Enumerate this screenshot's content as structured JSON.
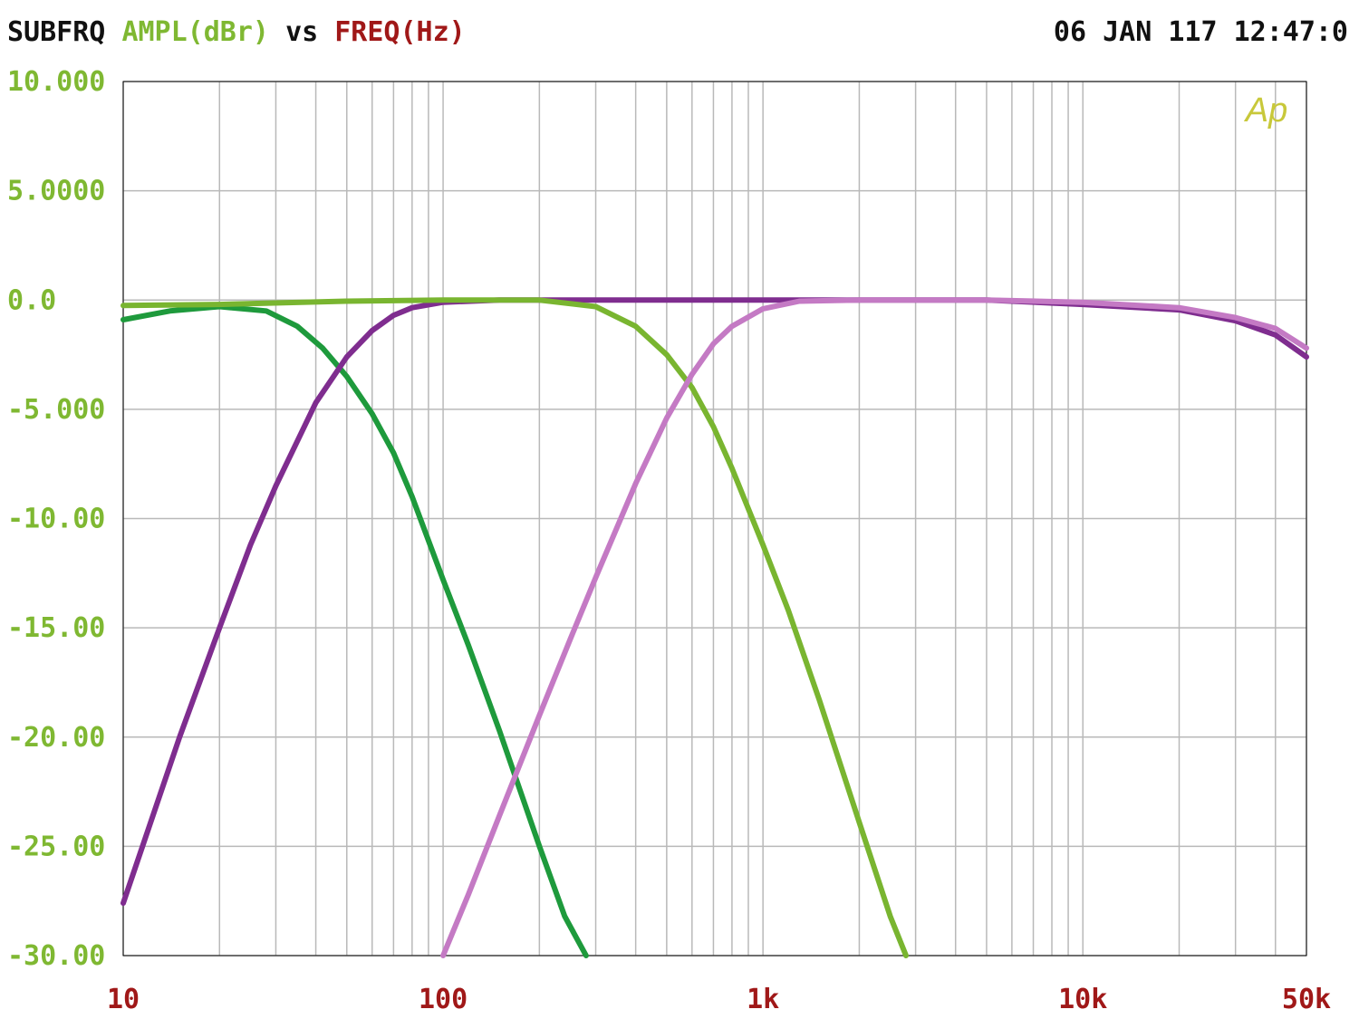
{
  "header": {
    "title_name": "SUBFRQ",
    "ylabel": "AMPL(dBr)",
    "vs": "vs",
    "xlabel": "FREQ(Hz)",
    "datetime": "06 JAN 117 12:47:0"
  },
  "logo": "Ap",
  "colors": {
    "frame": "#000000",
    "grid": "#b9b9b9",
    "ylabel_color": "#7fb832",
    "xlabel_color": "#a01818",
    "text_dark": "#111111"
  },
  "chart_data": {
    "type": "line",
    "title": "SUBFRQ AMPL(dBr) vs FREQ(Hz)",
    "xlabel": "FREQ(Hz)",
    "ylabel": "AMPL(dBr)",
    "xscale": "log",
    "xlim": [
      10,
      50000
    ],
    "ylim": [
      -30,
      10
    ],
    "grid": true,
    "x_tick_labels": [
      {
        "value": 10,
        "label": "10"
      },
      {
        "value": 100,
        "label": "100"
      },
      {
        "value": 1000,
        "label": "1k"
      },
      {
        "value": 10000,
        "label": "10k"
      },
      {
        "value": 50000,
        "label": "50k"
      }
    ],
    "y_tick_labels": [
      {
        "value": 10,
        "label": "10.000"
      },
      {
        "value": 5,
        "label": "5.0000"
      },
      {
        "value": 0,
        "label": "0.0"
      },
      {
        "value": -5,
        "label": "-5.000"
      },
      {
        "value": -10,
        "label": "-10.00"
      },
      {
        "value": -15,
        "label": "-15.00"
      },
      {
        "value": -20,
        "label": "-20.00"
      },
      {
        "value": -25,
        "label": "-25.00"
      },
      {
        "value": -30,
        "label": "-30.00"
      }
    ],
    "series": [
      {
        "color": "#1e9a3c",
        "x": [
          10,
          14,
          20,
          28,
          35,
          42,
          50,
          60,
          70,
          80,
          100,
          120,
          150,
          200,
          240,
          280
        ],
        "y": [
          -0.9,
          -0.5,
          -0.3,
          -0.5,
          -1.2,
          -2.2,
          -3.5,
          -5.2,
          -7.0,
          -9.0,
          -12.8,
          -15.8,
          -19.7,
          -25.0,
          -28.2,
          -30.0
        ]
      },
      {
        "color": "#7f2d8f",
        "x": [
          10,
          15,
          20,
          25,
          30,
          40,
          50,
          60,
          70,
          80,
          100,
          150,
          200,
          500,
          1000,
          5000,
          10000,
          20000,
          30000,
          40000,
          50000
        ],
        "y": [
          -27.6,
          -20.0,
          -15.0,
          -11.2,
          -8.5,
          -4.7,
          -2.6,
          -1.4,
          -0.7,
          -0.35,
          -0.1,
          0.0,
          0.0,
          0.0,
          0.0,
          0.0,
          -0.2,
          -0.45,
          -0.95,
          -1.6,
          -2.6
        ]
      },
      {
        "color": "#79b530",
        "x": [
          10,
          20,
          50,
          100,
          200,
          300,
          400,
          500,
          600,
          700,
          800,
          1000,
          1200,
          1500,
          2000,
          2500,
          2800
        ],
        "y": [
          -0.25,
          -0.2,
          -0.05,
          0.0,
          0.0,
          -0.3,
          -1.2,
          -2.5,
          -4.0,
          -5.8,
          -7.7,
          -11.2,
          -14.2,
          -18.3,
          -23.9,
          -28.2,
          -30.0
        ]
      },
      {
        "color": "#c47ac4",
        "x": [
          100,
          120,
          150,
          200,
          250,
          300,
          400,
          500,
          600,
          700,
          800,
          1000,
          1300,
          2000,
          5000,
          10000,
          20000,
          30000,
          40000,
          50000
        ],
        "y": [
          -30.0,
          -27.2,
          -23.6,
          -19.0,
          -15.5,
          -12.7,
          -8.4,
          -5.4,
          -3.4,
          -2.0,
          -1.2,
          -0.4,
          -0.05,
          0.0,
          0.0,
          -0.1,
          -0.35,
          -0.8,
          -1.3,
          -2.2
        ]
      }
    ]
  }
}
